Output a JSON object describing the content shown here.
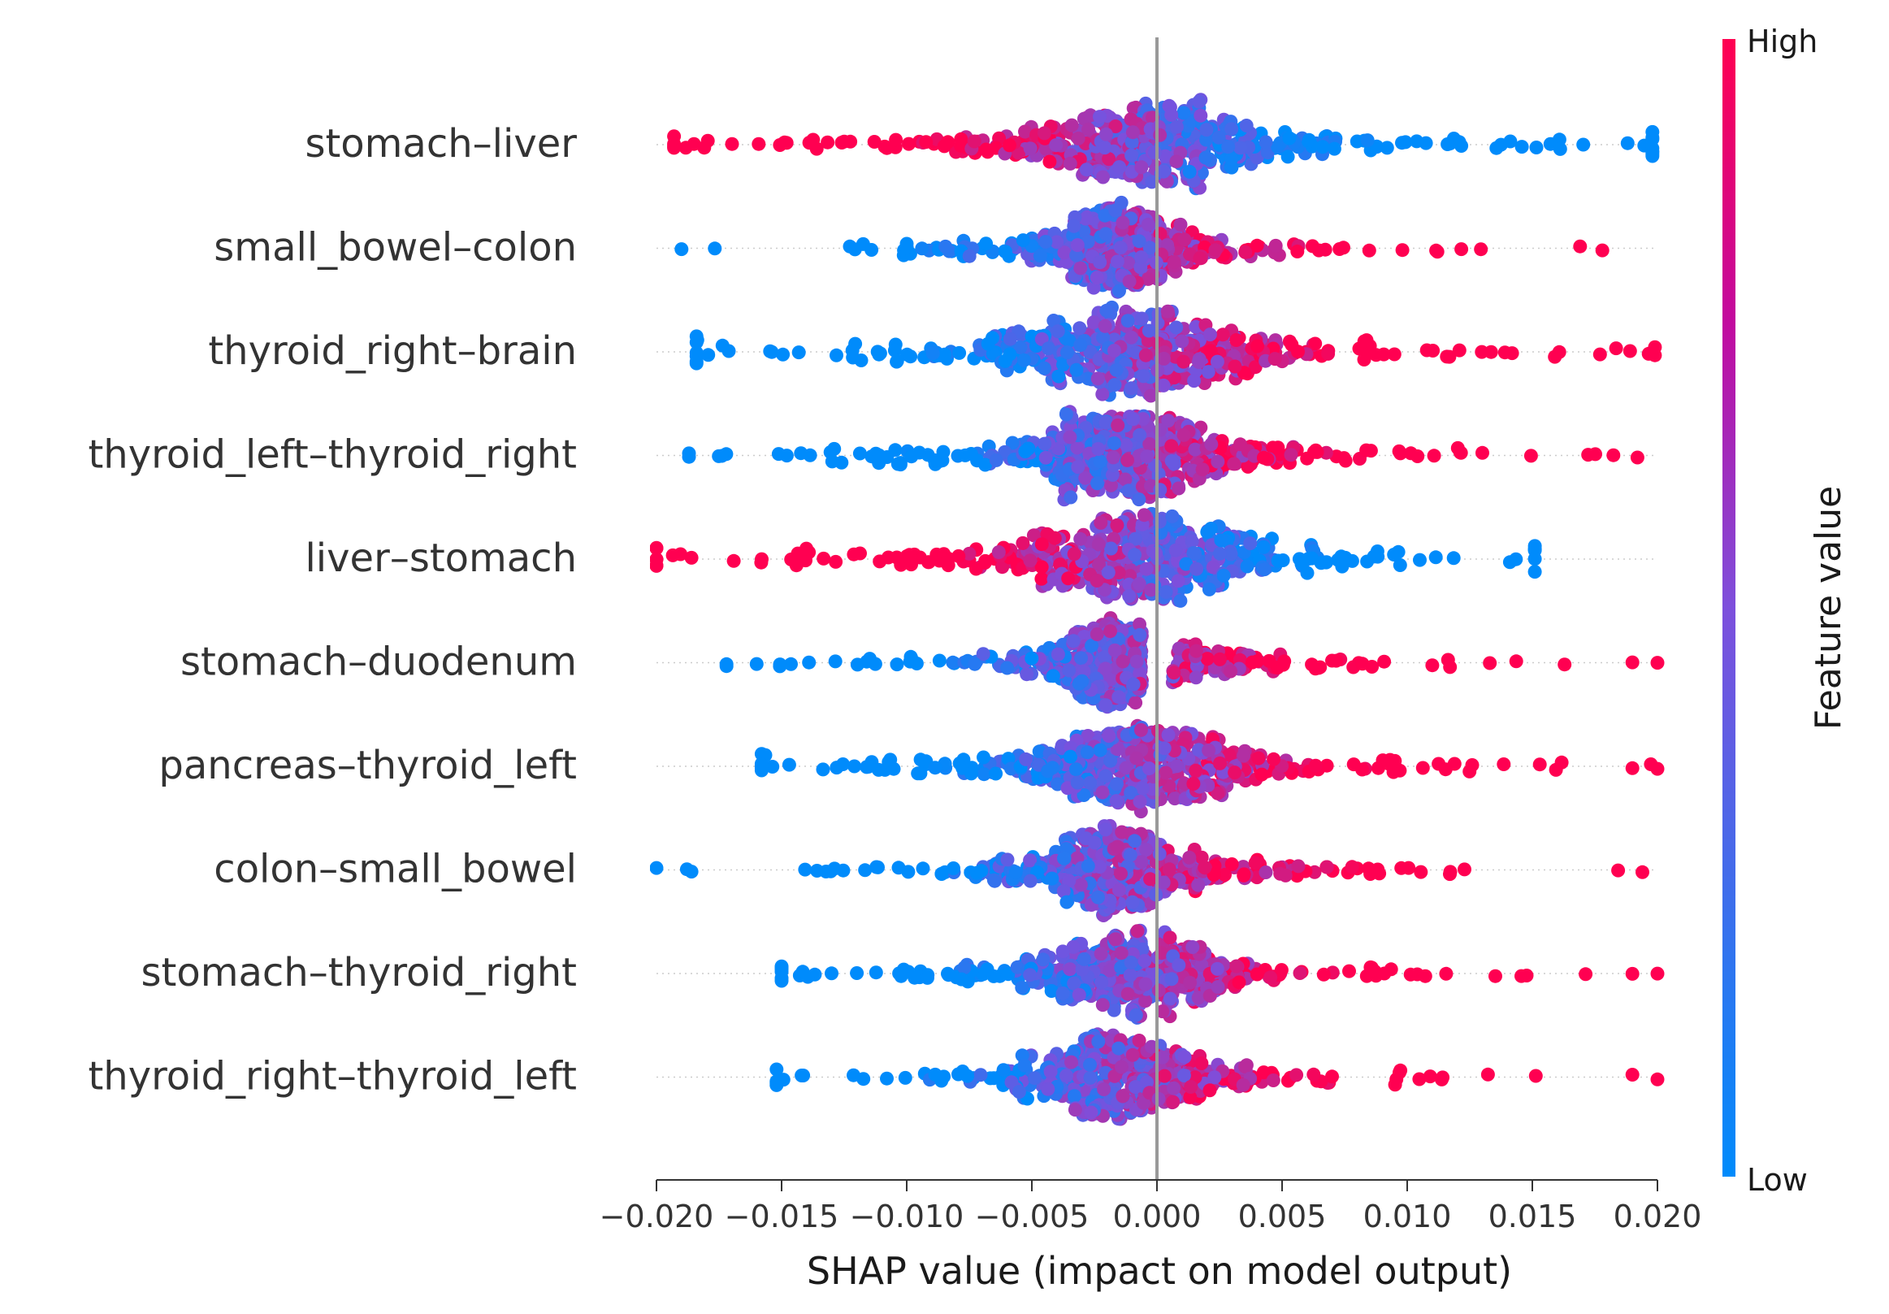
{
  "chart_data": {
    "type": "scatter",
    "subtype": "shap-beeswarm",
    "title": "",
    "xlabel": "SHAP value (impact on model output)",
    "ylabel": "",
    "xlim": [
      -0.02,
      0.02
    ],
    "xticks": [
      -0.02,
      -0.015,
      -0.01,
      -0.005,
      0.0,
      0.005,
      0.01,
      0.015,
      0.02
    ],
    "xtick_labels": [
      "−0.020",
      "−0.015",
      "−0.010",
      "−0.005",
      "0.000",
      "0.005",
      "0.010",
      "0.015",
      "0.020"
    ],
    "grid": false,
    "colorbar": {
      "label": "Feature value",
      "high_label": "High",
      "low_label": "Low",
      "low_color": "#008bfb",
      "high_color": "#ff0051"
    },
    "features": [
      {
        "name": "stomach–liver",
        "min": -0.0193,
        "max": 0.0198,
        "center": -0.0008,
        "spread": 0.0052,
        "width": 0.44,
        "corr": -1,
        "gap": 0
      },
      {
        "name": "small_bowel–colon",
        "min": -0.019,
        "max": 0.0178,
        "center": -0.0015,
        "spread": 0.003,
        "width": 0.44,
        "corr": 1,
        "gap": 0
      },
      {
        "name": "thyroid_right–brain",
        "min": -0.0184,
        "max": 0.0199,
        "center": -0.0008,
        "spread": 0.0048,
        "width": 0.44,
        "corr": 1,
        "gap": 0
      },
      {
        "name": "thyroid_left–thyroid_right",
        "min": -0.0187,
        "max": 0.0192,
        "center": -0.0012,
        "spread": 0.0042,
        "width": 0.44,
        "corr": 1,
        "gap": 0
      },
      {
        "name": "liver–stomach",
        "min": -0.02,
        "max": 0.0151,
        "center": -0.0008,
        "spread": 0.005,
        "width": 0.44,
        "corr": -1,
        "gap": 0
      },
      {
        "name": "stomach–duodenum",
        "min": -0.0172,
        "max": 0.02,
        "center": -0.0015,
        "spread": 0.0032,
        "width": 0.44,
        "corr": 1,
        "gap": 0.0006
      },
      {
        "name": "pancreas–thyroid_left",
        "min": -0.0158,
        "max": 0.02,
        "center": -0.0005,
        "spread": 0.0042,
        "width": 0.44,
        "corr": 1,
        "gap": 0
      },
      {
        "name": "colon–small_bowel",
        "min": -0.02,
        "max": 0.0194,
        "center": -0.0015,
        "spread": 0.0034,
        "width": 0.44,
        "corr": 1,
        "gap": 0
      },
      {
        "name": "stomach–thyroid_right",
        "min": -0.015,
        "max": 0.02,
        "center": -0.001,
        "spread": 0.0038,
        "width": 0.44,
        "corr": 1,
        "gap": 0
      },
      {
        "name": "thyroid_right–thyroid_left",
        "min": -0.0152,
        "max": 0.02,
        "center": -0.0015,
        "spread": 0.0036,
        "width": 0.44,
        "corr": 1,
        "gap": 0
      }
    ]
  }
}
